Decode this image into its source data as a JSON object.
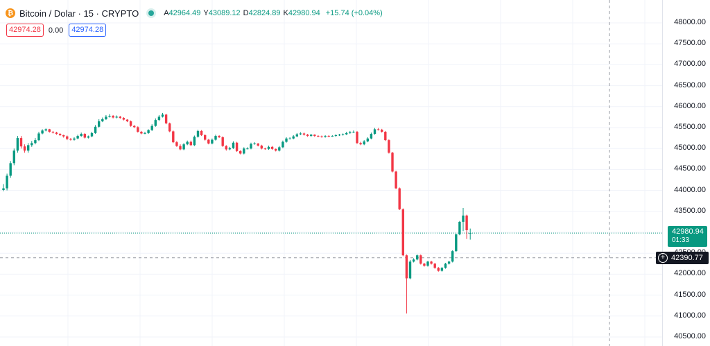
{
  "header": {
    "logo_glyph": "₿",
    "symbol": "Bitcoin / Dolar · 15 · CRYPTO",
    "ohlc": {
      "open_key": "A",
      "open": "42964.49",
      "high_key": "Y",
      "high": "43089.12",
      "low_key": "D",
      "low": "42824.89",
      "close_key": "K",
      "close": "42980.94",
      "change": "+15.74 (+0.04%)"
    },
    "market_status_color": "#26a69a"
  },
  "trade": {
    "sell": "42974.28",
    "spread": "0.00",
    "buy": "42974.28"
  },
  "price_axis": {
    "ticks": [
      "48000.00",
      "47500.00",
      "47000.00",
      "46500.00",
      "46000.00",
      "45500.00",
      "45000.00",
      "44500.00",
      "44000.00",
      "43500.00",
      "43000.00",
      "42500.00",
      "42000.00",
      "41500.00",
      "41000.00",
      "40500.00"
    ]
  },
  "last_price": {
    "value": "42980.94",
    "countdown": "01:33"
  },
  "crosshair": {
    "value": "42390.77"
  },
  "colors": {
    "up": "#089981",
    "down": "#f23645",
    "grid": "#f0f3fa"
  },
  "chart_data": {
    "type": "candlestick",
    "ylim": [
      40400,
      48300
    ],
    "y_ticks": [
      48000,
      47500,
      47000,
      46500,
      46000,
      45500,
      45000,
      44500,
      44000,
      43500,
      43000,
      42500,
      42000,
      41500,
      41000,
      40500
    ],
    "last_price": 42980.94,
    "crosshair_price": 42390.77,
    "close": [
      44050,
      44350,
      44650,
      44950,
      45250,
      45050,
      44950,
      45080,
      45130,
      45200,
      45360,
      45430,
      45460,
      45400,
      45380,
      45350,
      45320,
      45290,
      45230,
      45210,
      45240,
      45300,
      45350,
      45260,
      45290,
      45370,
      45520,
      45650,
      45700,
      45760,
      45780,
      45740,
      45760,
      45730,
      45690,
      45650,
      45540,
      45510,
      45400,
      45360,
      45370,
      45440,
      45540,
      45680,
      45760,
      45810,
      45600,
      45410,
      45150,
      45060,
      44980,
      45100,
      45160,
      45080,
      45280,
      45420,
      45320,
      45210,
      45120,
      45210,
      45300,
      45270,
      45060,
      44980,
      45010,
      45140,
      44940,
      44880,
      45000,
      45000,
      45110,
      45120,
      45070,
      45000,
      44990,
      45040,
      44990,
      44950,
      45030,
      45160,
      45240,
      45240,
      45290,
      45340,
      45360,
      45330,
      45300,
      45330,
      45300,
      45290,
      45280,
      45300,
      45290,
      45300,
      45320,
      45330,
      45340,
      45370,
      45390,
      45400,
      45130,
      45100,
      45170,
      45240,
      45350,
      45460,
      45450,
      45400,
      45200,
      44900,
      44450,
      44050,
      43550,
      42450,
      41900,
      42300,
      42350,
      42450,
      42250,
      42200,
      42300,
      42250,
      42150,
      42080,
      42150,
      42250,
      42300,
      42550,
      42950,
      43250,
      43400,
      43050,
      42980.94
    ],
    "open": [
      44010,
      44050,
      44350,
      44650,
      44950,
      45250,
      45050,
      44950,
      45080,
      45130,
      45200,
      45360,
      45430,
      45460,
      45400,
      45380,
      45350,
      45320,
      45290,
      45230,
      45210,
      45240,
      45300,
      45350,
      45260,
      45290,
      45370,
      45520,
      45650,
      45700,
      45760,
      45780,
      45740,
      45760,
      45730,
      45690,
      45650,
      45540,
      45510,
      45400,
      45360,
      45370,
      45440,
      45540,
      45680,
      45760,
      45810,
      45600,
      45410,
      45150,
      45060,
      44980,
      45100,
      45160,
      45080,
      45280,
      45420,
      45320,
      45210,
      45120,
      45210,
      45300,
      45270,
      45060,
      44980,
      45010,
      45140,
      44940,
      44880,
      45000,
      45000,
      45110,
      45120,
      45070,
      45000,
      44990,
      45040,
      44990,
      44950,
      45030,
      45160,
      45240,
      45240,
      45290,
      45340,
      45360,
      45330,
      45300,
      45330,
      45300,
      45290,
      45280,
      45300,
      45290,
      45300,
      45320,
      45330,
      45340,
      45370,
      45390,
      45400,
      45130,
      45100,
      45170,
      45240,
      45350,
      45460,
      45450,
      45400,
      45200,
      44900,
      44450,
      44050,
      43550,
      42450,
      41900,
      42300,
      42350,
      42450,
      42250,
      42200,
      42300,
      42250,
      42150,
      42080,
      42150,
      42250,
      42300,
      42550,
      42950,
      43250,
      43400,
      42964.49
    ],
    "high": [
      44150,
      44400,
      44700,
      45000,
      45300,
      45300,
      45100,
      45130,
      45180,
      45250,
      45400,
      45460,
      45480,
      45470,
      45420,
      45400,
      45370,
      45330,
      45310,
      45250,
      45270,
      45330,
      45380,
      45370,
      45310,
      45400,
      45560,
      45700,
      45740,
      45800,
      45820,
      45800,
      45790,
      45780,
      45750,
      45700,
      45670,
      45560,
      45530,
      45420,
      45400,
      45460,
      45580,
      45720,
      45800,
      45850,
      45830,
      45620,
      45430,
      45180,
      45100,
      45130,
      45190,
      45190,
      45310,
      45450,
      45440,
      45340,
      45230,
      45240,
      45330,
      45320,
      45290,
      45080,
      45040,
      45170,
      45160,
      44960,
      45030,
      45030,
      45140,
      45150,
      45130,
      45090,
      45020,
      45070,
      45060,
      45000,
      45060,
      45190,
      45270,
      45270,
      45320,
      45370,
      45390,
      45380,
      45350,
      45350,
      45340,
      45320,
      45310,
      45320,
      45320,
      45320,
      45340,
      45350,
      45360,
      45400,
      45420,
      45430,
      45420,
      45160,
      45200,
      45270,
      45380,
      45490,
      45490,
      45470,
      45420,
      45220,
      44920,
      44470,
      44070,
      43570,
      42470,
      42340,
      42380,
      42470,
      42470,
      42270,
      42320,
      42320,
      42270,
      42170,
      42170,
      42270,
      42320,
      42570,
      42970,
      43270,
      43580,
      43420,
      43089.12
    ],
    "low": [
      43980,
      44000,
      44300,
      44600,
      44900,
      45000,
      44900,
      44900,
      45040,
      45100,
      45180,
      45340,
      45410,
      45380,
      45360,
      45330,
      45300,
      45260,
      45200,
      45190,
      45190,
      45220,
      45280,
      45240,
      45240,
      45270,
      45350,
      45500,
      45630,
      45680,
      45740,
      45720,
      45720,
      45710,
      45670,
      45630,
      45520,
      45490,
      45380,
      45340,
      45340,
      45350,
      45420,
      45520,
      45660,
      45740,
      45580,
      45390,
      45130,
      45040,
      44960,
      44960,
      45080,
      45060,
      45060,
      45260,
      45300,
      45190,
      45100,
      45100,
      45190,
      45250,
      45040,
      44950,
      44960,
      44990,
      44920,
      44860,
      44860,
      44980,
      44980,
      45090,
      45050,
      44980,
      44970,
      44970,
      44970,
      44930,
      44930,
      45010,
      45140,
      45220,
      45220,
      45270,
      45320,
      45310,
      45280,
      45280,
      45280,
      45270,
      45260,
      45260,
      45270,
      45280,
      45280,
      45300,
      45310,
      45320,
      45350,
      45370,
      45110,
      45080,
      45080,
      45150,
      45220,
      45330,
      45430,
      45380,
      45180,
      44880,
      44430,
      44030,
      43530,
      42430,
      41060,
      41880,
      42280,
      42330,
      42230,
      42180,
      42180,
      42230,
      42130,
      42060,
      42060,
      42130,
      42230,
      42280,
      42530,
      42930,
      43030,
      42840,
      42824.89
    ]
  }
}
